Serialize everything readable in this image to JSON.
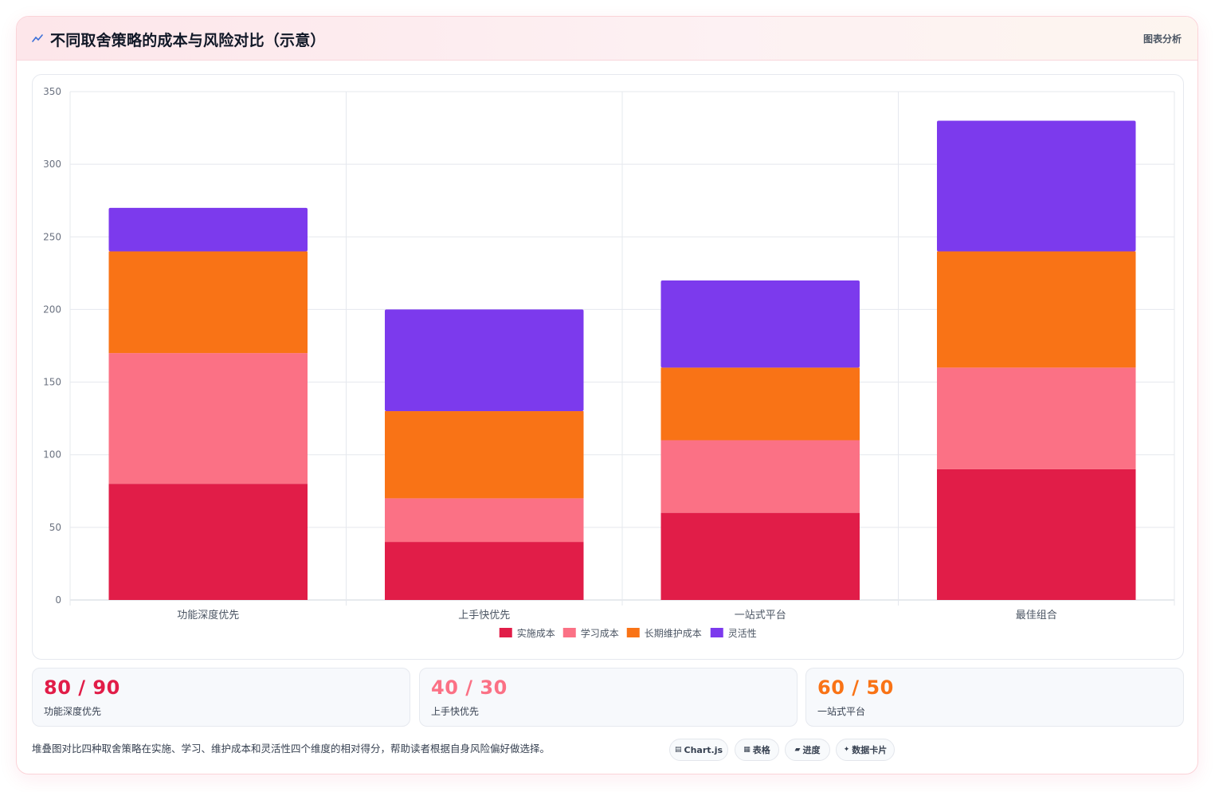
{
  "header": {
    "title": "不同取舍策略的成本与风险对比（示意）",
    "tag": "图表分析"
  },
  "chart_data": {
    "type": "bar",
    "stacked": true,
    "categories": [
      "功能深度优先",
      "上手快优先",
      "一站式平台",
      "最佳组合"
    ],
    "series": [
      {
        "name": "实施成本",
        "color": "#e11d48",
        "values": [
          80,
          40,
          60,
          90
        ]
      },
      {
        "name": "学习成本",
        "color": "#fb7185",
        "values": [
          90,
          30,
          50,
          70
        ]
      },
      {
        "name": "长期维护成本",
        "color": "#f97316",
        "values": [
          70,
          60,
          50,
          80
        ]
      },
      {
        "name": "灵活性",
        "color": "#7c3aed",
        "values": [
          30,
          70,
          60,
          90
        ]
      }
    ],
    "ylim": [
      0,
      350
    ],
    "yticks": [
      0,
      50,
      100,
      150,
      200,
      250,
      300,
      350
    ],
    "grid": true,
    "legend_position": "bottom"
  },
  "stats": [
    {
      "value": "80 / 90",
      "label": "功能深度优先",
      "color": "#e11d48"
    },
    {
      "value": "40 / 30",
      "label": "上手快优先",
      "color": "#fb7185"
    },
    {
      "value": "60 / 50",
      "label": "一站式平台",
      "color": "#f97316"
    }
  ],
  "footnote": "堆叠图对比四种取舍策略在实施、学习、维护成本和灵活性四个维度的相对得分，帮助读者根据自身风险偏好做选择。",
  "pills": [
    {
      "icon": "▤",
      "label": "Chart.js",
      "icon_name": "chart-icon"
    },
    {
      "icon": "▦",
      "label": "表格",
      "icon_name": "table-icon"
    },
    {
      "icon": "▰",
      "label": "进度",
      "icon_name": "progress-icon"
    },
    {
      "icon": "✦",
      "label": "数据卡片",
      "icon_name": "sparkle-icon"
    }
  ]
}
